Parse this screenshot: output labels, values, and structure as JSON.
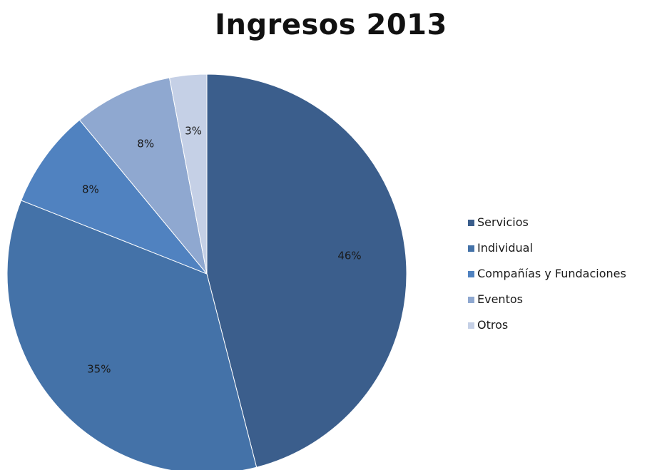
{
  "chart_data": {
    "type": "pie",
    "title": "Ingresos 2013",
    "slices": [
      {
        "label": "Servicios",
        "value": 46,
        "display": "46%",
        "color": "#3B5E8C"
      },
      {
        "label": "Individual",
        "value": 35,
        "display": "35%",
        "color": "#4472A8"
      },
      {
        "label": "Compañías y Fundaciones",
        "value": 8,
        "display": "8%",
        "color": "#5082C0"
      },
      {
        "label": "Eventos",
        "value": 8,
        "display": "8%",
        "color": "#8FA8D0"
      },
      {
        "label": "Otros",
        "value": 3,
        "display": "3%",
        "color": "#C5D0E6"
      }
    ],
    "legend_position": "right",
    "start_angle_deg": 0,
    "direction": "clockwise"
  }
}
